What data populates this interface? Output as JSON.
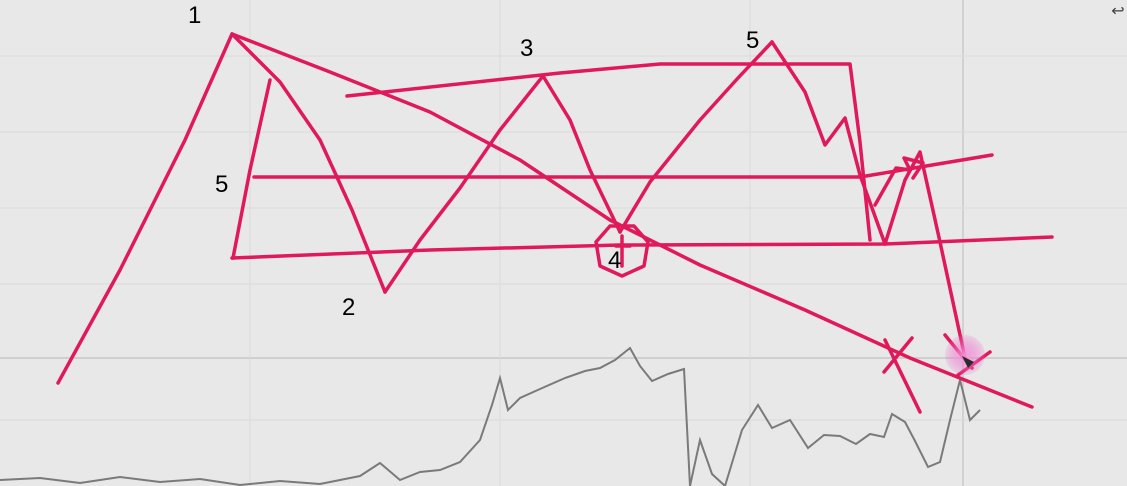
{
  "colors": {
    "background": "#e8e8e8",
    "grid": "#d9d9d9",
    "divider": "#c8c8c8",
    "price_line": "#7a7a7a",
    "annotation": "#e0195b",
    "cursor_halo": "#ec61c6"
  },
  "annotations": {
    "labels": [
      {
        "id": "wave-1",
        "text": "1"
      },
      {
        "id": "wave-2",
        "text": "2"
      },
      {
        "id": "wave-3",
        "text": "3"
      },
      {
        "id": "wave-4",
        "text": "4"
      },
      {
        "id": "wave-5-top",
        "text": "5"
      },
      {
        "id": "wave-5-left",
        "text": "5"
      }
    ]
  },
  "icons": {
    "corner": "arrow-icon",
    "cursor": "cursor-icon"
  }
}
